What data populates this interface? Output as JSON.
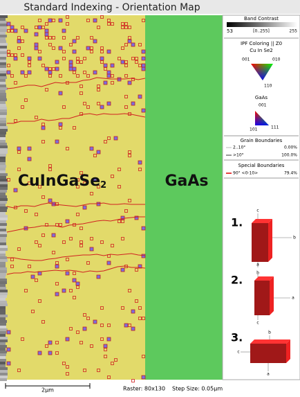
{
  "header": {
    "title": "Standard Indexing - Orientation Map"
  },
  "map": {
    "labels": [
      {
        "text": "CuInGaSe",
        "subscript": "2"
      },
      {
        "text": "GaAs"
      }
    ]
  },
  "legend": {
    "band_contrast": {
      "title": "Band Contrast",
      "min": "53",
      "range": "[0..255]",
      "max": "255"
    },
    "ipf": {
      "title": "IPF Coloring || Z0",
      "phases": [
        {
          "name": "Cu In Se2",
          "corners": [
            "001",
            "010",
            "110"
          ]
        },
        {
          "name": "GaAs",
          "corners": [
            "001",
            "101",
            "111"
          ]
        }
      ]
    },
    "grain_boundaries": {
      "title": "Grain Boundaries",
      "rows": [
        {
          "label": "2..10°",
          "value": "0.00%"
        },
        {
          "label": ">10°",
          "value": "100.0%"
        }
      ]
    },
    "special_boundaries": {
      "title": "Special Boundaries",
      "rows": [
        {
          "label": "90° <0-10>",
          "value": "79.4%"
        }
      ]
    }
  },
  "orientations": [
    {
      "label": "1.",
      "axes": [
        "c",
        "b",
        "a"
      ]
    },
    {
      "label": "2.",
      "axes": [
        "b",
        "a",
        "c"
      ]
    },
    {
      "label": "3.",
      "axes": [
        "c",
        "b",
        "a"
      ]
    }
  ],
  "footer": {
    "scale": "2µm",
    "raster": "Raster: 80x130",
    "step_size": "Step Size: 0.05µm"
  }
}
